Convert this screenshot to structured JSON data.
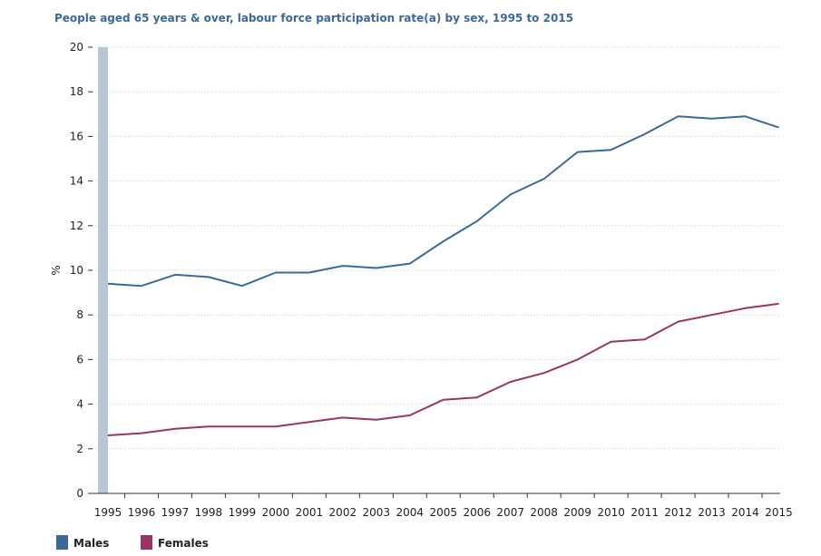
{
  "chart_data": {
    "type": "line",
    "title": "People aged 65 years & over, labour force participation rate(a) by sex, 1995 to 2015",
    "xlabel": "",
    "ylabel": "%",
    "x": [
      "1995",
      "1996",
      "1997",
      "1998",
      "1999",
      "2000",
      "2001",
      "2002",
      "2003",
      "2004",
      "2005",
      "2006",
      "2007",
      "2008",
      "2009",
      "2010",
      "2011",
      "2012",
      "2013",
      "2014",
      "2015"
    ],
    "yticks": [
      "0",
      "2",
      "4",
      "6",
      "8",
      "10",
      "12",
      "14",
      "16",
      "18",
      "20"
    ],
    "ylim": [
      0,
      20
    ],
    "grid": true,
    "legend_position": "bottom-left",
    "series": [
      {
        "name": "Males",
        "color": "#3b6a99",
        "values": [
          9.4,
          9.3,
          9.8,
          9.7,
          9.3,
          9.9,
          9.9,
          10.2,
          10.1,
          10.3,
          11.3,
          12.2,
          13.4,
          14.1,
          15.3,
          15.4,
          16.1,
          16.9,
          16.8,
          16.9,
          16.4
        ]
      },
      {
        "name": "Females",
        "color": "#9b3366",
        "values": [
          2.6,
          2.7,
          2.9,
          3.0,
          3.0,
          3.0,
          3.2,
          3.4,
          3.3,
          3.5,
          4.2,
          4.3,
          5.0,
          5.4,
          6.0,
          6.8,
          6.9,
          7.7,
          8.0,
          8.3,
          8.5
        ]
      }
    ]
  }
}
